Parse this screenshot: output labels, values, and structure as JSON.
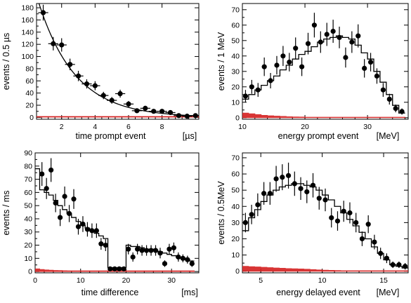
{
  "chart_data": [
    {
      "type": "scatter",
      "xlabel": "time prompt event",
      "xunit": "[µs]",
      "ylabel": "events / 0.5 µs",
      "xlim": [
        0.5,
        10.2
      ],
      "ylim": [
        -3,
        187
      ],
      "xticks": [
        2,
        4,
        6,
        8
      ],
      "yticks": [
        0,
        20,
        40,
        60,
        80,
        100,
        120,
        140,
        160,
        180
      ],
      "fit": "exponential",
      "x": [
        0.9,
        1.5,
        2.0,
        2.5,
        3.0,
        3.5,
        4.0,
        4.5,
        5.0,
        5.5,
        6.0,
        6.5,
        7.0,
        7.5,
        8.0,
        8.5,
        9.0,
        9.5,
        10.0
      ],
      "y": [
        172,
        121,
        119,
        87,
        68,
        55,
        52,
        36,
        28,
        39,
        22,
        11,
        15,
        10,
        10,
        8,
        3,
        2,
        3
      ],
      "yerr": [
        13,
        11,
        11,
        9.5,
        8.5,
        7.5,
        7.5,
        6,
        5.5,
        6.5,
        5,
        3.5,
        4,
        3.5,
        3.5,
        3,
        2,
        2,
        2
      ],
      "fit_curve": {
        "amplitude": 200,
        "lifetime": 2.2
      },
      "background_level": 2
    },
    {
      "type": "scatter",
      "xlabel": "energy prompt event",
      "xunit": "[MeV]",
      "ylabel": "events / 1 MeV",
      "xlim": [
        10,
        36.5
      ],
      "ylim": [
        -1,
        74
      ],
      "xticks": [
        10,
        20,
        30
      ],
      "yticks": [
        0,
        10,
        20,
        30,
        40,
        50,
        60,
        70
      ],
      "x": [
        10.5,
        11.5,
        12.5,
        13.5,
        14.5,
        15.5,
        16.5,
        17.5,
        18.5,
        19.5,
        20.5,
        21.5,
        22.5,
        23.5,
        24.5,
        25.5,
        26.5,
        27.5,
        28.5,
        29.5,
        30.5,
        31.5,
        32.5,
        33.5,
        34.5,
        35.5
      ],
      "y": [
        14,
        20,
        18,
        33,
        24,
        34,
        40,
        36,
        45,
        33,
        48,
        60,
        49,
        54,
        56,
        52,
        39,
        49,
        53,
        32,
        36,
        27,
        18,
        12,
        6,
        4
      ],
      "yerr": [
        4,
        4.5,
        4.5,
        6,
        5,
        6,
        6.5,
        6,
        7,
        6,
        7,
        8,
        7,
        7.5,
        7.5,
        7,
        6.5,
        7,
        7.5,
        6,
        6,
        5,
        4.5,
        3.5,
        2.5,
        2
      ],
      "model": [
        12,
        15,
        18,
        21,
        24,
        27,
        31,
        34,
        38,
        41,
        43,
        46,
        49,
        51,
        52,
        53,
        52,
        51,
        47,
        42,
        38,
        30,
        23,
        15,
        8,
        3
      ],
      "background": [
        3,
        2.5,
        2,
        1.5,
        1.2,
        1,
        0.8,
        0.6,
        0.5,
        0.4,
        0.3,
        0.3,
        0.3,
        0.3,
        0.3,
        0.3,
        0.3,
        0.3,
        0.3,
        0.3,
        0.3,
        0.3,
        0.3,
        0.3,
        0.3,
        0.3
      ]
    },
    {
      "type": "scatter",
      "xlabel": "time difference",
      "xunit": "[ms]",
      "ylabel": "events / ms",
      "xlim": [
        0,
        36
      ],
      "ylim": [
        -1,
        90
      ],
      "xticks": [
        0,
        10,
        20,
        30
      ],
      "yticks": [
        0,
        10,
        20,
        30,
        40,
        50,
        60,
        70,
        80,
        90
      ],
      "x": [
        1.5,
        2.5,
        3.5,
        4.5,
        5.5,
        6.5,
        7.5,
        8.5,
        9.5,
        10.5,
        11.5,
        12.5,
        13.5,
        14.5,
        15.5,
        16.5,
        17.5,
        18.5,
        19.5,
        20.5,
        21.5,
        22.5,
        23.5,
        24.5,
        25.5,
        26.5,
        27.5,
        28.5,
        29.5,
        30.5,
        31.5,
        32.5,
        33.5,
        34.5
      ],
      "y": [
        74,
        63,
        77,
        52,
        41,
        57,
        44,
        55,
        34,
        36,
        32,
        31,
        31,
        21,
        20,
        2,
        2,
        2,
        2,
        17,
        11,
        17,
        16,
        16,
        16,
        16,
        14,
        6,
        17,
        18,
        11,
        10,
        9,
        6
      ],
      "yerr": [
        9,
        8,
        9,
        7,
        6.5,
        7.5,
        6.5,
        7.5,
        6,
        6,
        5.5,
        5.5,
        5.5,
        4.5,
        4.5,
        1.5,
        1.5,
        1.5,
        1.5,
        4,
        3.5,
        4,
        4,
        4,
        4,
        4,
        4,
        2.5,
        4,
        4,
        3.5,
        3,
        3,
        2.5
      ],
      "model_edges": [
        0,
        1,
        2,
        3,
        4,
        5,
        6,
        7,
        8,
        9,
        10,
        11,
        12,
        13,
        14,
        15,
        16,
        17,
        18,
        19,
        20,
        21,
        22,
        23,
        24,
        25,
        26,
        27,
        28,
        29,
        30,
        31,
        32,
        33,
        34,
        35
      ],
      "model": [
        78,
        62,
        60,
        58,
        54,
        50,
        47,
        44,
        41,
        38,
        35,
        33,
        31,
        29,
        27,
        25,
        3,
        3,
        3,
        3,
        20,
        19,
        19,
        18,
        17,
        17,
        16,
        15,
        14,
        13,
        12,
        11,
        10,
        9,
        8
      ],
      "background": [
        2,
        1.5,
        1.2,
        1,
        0.8,
        0.7,
        0.6,
        0.5,
        0.5,
        0.5,
        0.5,
        0.5,
        0.5,
        0.5,
        0.5,
        0.5,
        0.5,
        0.5,
        0.5,
        0.5,
        0.5,
        0.5,
        0.5,
        0.5,
        0.5,
        0.5,
        0.5,
        0.5,
        0.5,
        0.5,
        0.5,
        0.5,
        0.5,
        0.5,
        0.5
      ]
    },
    {
      "type": "scatter",
      "xlabel": "energy delayed event",
      "xunit": "[MeV]",
      "ylabel": "events / 0.5MeV",
      "xlim": [
        3.5,
        17
      ],
      "ylim": [
        -1,
        73
      ],
      "xticks": [
        5,
        10,
        15
      ],
      "yticks": [
        0,
        10,
        20,
        30,
        40,
        50,
        60,
        70
      ],
      "x": [
        3.75,
        4.25,
        4.75,
        5.25,
        5.75,
        6.25,
        6.75,
        7.25,
        7.75,
        8.25,
        8.75,
        9.25,
        9.75,
        10.25,
        10.75,
        11.25,
        11.75,
        12.25,
        12.75,
        13.25,
        13.75,
        14.25,
        14.75,
        15.25,
        15.75,
        16.25,
        16.75
      ],
      "y": [
        30,
        35,
        41,
        48,
        48,
        57,
        58,
        59,
        54,
        51,
        49,
        53,
        45,
        44,
        33,
        31,
        37,
        36,
        30,
        20,
        29,
        18,
        11,
        8,
        4,
        4,
        3
      ],
      "yerr": [
        6,
        6,
        7,
        7,
        7,
        8,
        8,
        8,
        7.5,
        7,
        7,
        7.5,
        7,
        7,
        6,
        6,
        6.5,
        6.5,
        6,
        4.5,
        5.5,
        4.5,
        3.5,
        3,
        2,
        2,
        2
      ],
      "model": [
        25,
        33,
        38,
        43,
        47,
        50,
        52,
        53,
        54,
        54,
        53,
        52,
        50,
        47,
        44,
        40,
        36,
        32,
        28,
        24,
        20,
        15,
        11,
        7,
        4,
        3,
        2
      ],
      "background": [
        3,
        2.8,
        2.6,
        2.4,
        2.2,
        2,
        1.8,
        1.6,
        1.5,
        1.4,
        1.2,
        1,
        0.8,
        0.6,
        0.5,
        0.4,
        0.3,
        0.3,
        0.3,
        0.3,
        0.3,
        0.3,
        0.3,
        0.3,
        0.3,
        0.3,
        0.3
      ]
    }
  ],
  "colors": {
    "data": "#000000",
    "model": "#000000",
    "background": "#d42020"
  }
}
